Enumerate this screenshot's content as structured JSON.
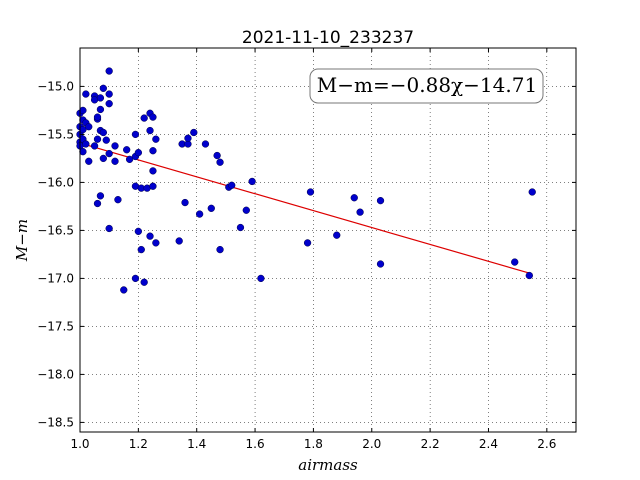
{
  "chart_data": {
    "type": "scatter",
    "title": "2021-11-10_233237",
    "xlabel": "airmass",
    "ylabel": "M−m",
    "xlim": [
      1.0,
      2.7
    ],
    "ylim": [
      -18.6,
      -14.6
    ],
    "y_inverted": true,
    "xticks": [
      1.0,
      1.2,
      1.4,
      1.6,
      1.8,
      2.0,
      2.2,
      2.4,
      2.6
    ],
    "xtick_labels": [
      "1.0",
      "1.2",
      "1.4",
      "1.6",
      "1.8",
      "2.0",
      "2.2",
      "2.4",
      "2.6"
    ],
    "yticks": [
      -15.0,
      -15.5,
      -16.0,
      -16.5,
      -17.0,
      -17.5,
      -18.0,
      -18.5
    ],
    "ytick_labels": [
      "−15.0",
      "−15.5",
      "−16.0",
      "−16.5",
      "−17.0",
      "−17.5",
      "−18.0",
      "−18.5"
    ],
    "grid": true,
    "annotation": "M−m=−0.88χ−14.71",
    "fit": {
      "slope": -0.88,
      "intercept": -14.71,
      "x_range": [
        1.0,
        2.55
      ],
      "color": "#dd0000"
    },
    "marker_color": "#0000cc",
    "points": [
      [
        1.0,
        -15.28
      ],
      [
        1.0,
        -15.42
      ],
      [
        1.0,
        -15.5
      ],
      [
        1.0,
        -15.58
      ],
      [
        1.0,
        -15.62
      ],
      [
        1.01,
        -15.25
      ],
      [
        1.01,
        -15.35
      ],
      [
        1.01,
        -15.45
      ],
      [
        1.01,
        -15.55
      ],
      [
        1.01,
        -15.68
      ],
      [
        1.02,
        -15.38
      ],
      [
        1.02,
        -15.6
      ],
      [
        1.02,
        -15.08
      ],
      [
        1.03,
        -15.42
      ],
      [
        1.03,
        -15.78
      ],
      [
        1.05,
        -15.1
      ],
      [
        1.05,
        -15.14
      ],
      [
        1.05,
        -15.62
      ],
      [
        1.06,
        -15.34
      ],
      [
        1.06,
        -15.32
      ],
      [
        1.06,
        -15.55
      ],
      [
        1.06,
        -16.22
      ],
      [
        1.07,
        -15.12
      ],
      [
        1.07,
        -15.24
      ],
      [
        1.07,
        -15.46
      ],
      [
        1.07,
        -16.14
      ],
      [
        1.08,
        -15.02
      ],
      [
        1.08,
        -15.48
      ],
      [
        1.08,
        -15.75
      ],
      [
        1.09,
        -15.56
      ],
      [
        1.1,
        -15.08
      ],
      [
        1.1,
        -15.18
      ],
      [
        1.1,
        -14.84
      ],
      [
        1.1,
        -15.7
      ],
      [
        1.1,
        -16.48
      ],
      [
        1.12,
        -15.62
      ],
      [
        1.12,
        -15.78
      ],
      [
        1.13,
        -16.18
      ],
      [
        1.15,
        -17.12
      ],
      [
        1.16,
        -15.66
      ],
      [
        1.17,
        -15.76
      ],
      [
        1.19,
        -15.5
      ],
      [
        1.19,
        -15.73
      ],
      [
        1.19,
        -16.04
      ],
      [
        1.19,
        -17.0
      ],
      [
        1.2,
        -15.69
      ],
      [
        1.2,
        -16.51
      ],
      [
        1.21,
        -16.06
      ],
      [
        1.21,
        -16.7
      ],
      [
        1.22,
        -17.04
      ],
      [
        1.22,
        -15.33
      ],
      [
        1.23,
        -16.06
      ],
      [
        1.24,
        -15.46
      ],
      [
        1.24,
        -15.28
      ],
      [
        1.24,
        -16.56
      ],
      [
        1.25,
        -15.32
      ],
      [
        1.25,
        -15.67
      ],
      [
        1.25,
        -15.88
      ],
      [
        1.25,
        -16.04
      ],
      [
        1.26,
        -15.55
      ],
      [
        1.26,
        -16.63
      ],
      [
        1.34,
        -16.61
      ],
      [
        1.35,
        -15.6
      ],
      [
        1.36,
        -16.21
      ],
      [
        1.37,
        -15.6
      ],
      [
        1.37,
        -15.54
      ],
      [
        1.39,
        -15.48
      ],
      [
        1.41,
        -16.33
      ],
      [
        1.43,
        -15.6
      ],
      [
        1.45,
        -16.27
      ],
      [
        1.47,
        -15.72
      ],
      [
        1.48,
        -15.79
      ],
      [
        1.48,
        -16.7
      ],
      [
        1.51,
        -16.05
      ],
      [
        1.52,
        -16.03
      ],
      [
        1.55,
        -16.47
      ],
      [
        1.57,
        -16.29
      ],
      [
        1.59,
        -15.99
      ],
      [
        1.62,
        -17.0
      ],
      [
        1.78,
        -16.63
      ],
      [
        1.79,
        -16.1
      ],
      [
        1.88,
        -16.55
      ],
      [
        1.94,
        -16.16
      ],
      [
        1.96,
        -16.31
      ],
      [
        2.03,
        -16.19
      ],
      [
        2.03,
        -16.85
      ],
      [
        2.49,
        -16.83
      ],
      [
        2.54,
        -16.97
      ],
      [
        2.55,
        -16.1
      ]
    ]
  }
}
